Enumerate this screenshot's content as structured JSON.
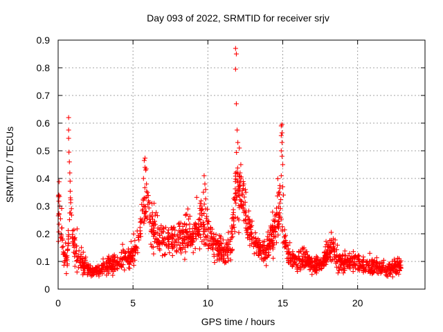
{
  "chart_data": {
    "type": "scatter",
    "title": "Day 093 of 2022, SRMTID for receiver srjv",
    "xlabel": "GPS time / hours",
    "ylabel": "SRMTID / TECUs",
    "xlim": [
      0,
      24.5
    ],
    "ylim": [
      0,
      0.9
    ],
    "xticks": [
      0,
      5,
      10,
      15,
      20
    ],
    "yticks": [
      0,
      0.1,
      0.2,
      0.3,
      0.4,
      0.5,
      0.6,
      0.7,
      0.8,
      0.9
    ],
    "xtick_labels": [
      "0",
      "5",
      "10",
      "15",
      "20"
    ],
    "ytick_labels": [
      "0",
      "0.1",
      "0.2",
      "0.3",
      "0.4",
      "0.5",
      "0.6",
      "0.7",
      "0.8",
      "0.9"
    ],
    "grid": true,
    "marker": "+",
    "color": "#ff0000",
    "series": [
      {
        "name": "srjv",
        "x_range": [
          0,
          22.9
        ],
        "profile": [
          [
            0.0,
            0.3
          ],
          [
            0.2,
            0.22
          ],
          [
            0.4,
            0.11
          ],
          [
            0.6,
            0.1
          ],
          [
            0.8,
            0.3
          ],
          [
            1.0,
            0.18
          ],
          [
            1.3,
            0.11
          ],
          [
            2.0,
            0.07
          ],
          [
            2.5,
            0.06
          ],
          [
            3.0,
            0.08
          ],
          [
            3.5,
            0.09
          ],
          [
            4.0,
            0.1
          ],
          [
            4.6,
            0.11
          ],
          [
            5.0,
            0.12
          ],
          [
            5.4,
            0.18
          ],
          [
            5.8,
            0.33
          ],
          [
            6.2,
            0.23
          ],
          [
            6.6,
            0.19
          ],
          [
            7.0,
            0.18
          ],
          [
            7.6,
            0.17
          ],
          [
            8.0,
            0.18
          ],
          [
            8.5,
            0.2
          ],
          [
            9.0,
            0.17
          ],
          [
            9.6,
            0.26
          ],
          [
            9.9,
            0.22
          ],
          [
            10.4,
            0.16
          ],
          [
            11.0,
            0.13
          ],
          [
            11.5,
            0.15
          ],
          [
            11.9,
            0.36
          ],
          [
            12.3,
            0.33
          ],
          [
            12.7,
            0.22
          ],
          [
            13.2,
            0.15
          ],
          [
            13.8,
            0.14
          ],
          [
            14.4,
            0.19
          ],
          [
            14.8,
            0.3
          ],
          [
            15.1,
            0.16
          ],
          [
            15.6,
            0.11
          ],
          [
            16.0,
            0.1
          ],
          [
            16.5,
            0.11
          ],
          [
            17.0,
            0.09
          ],
          [
            17.5,
            0.08
          ],
          [
            18.0,
            0.13
          ],
          [
            18.3,
            0.16
          ],
          [
            18.7,
            0.1
          ],
          [
            19.5,
            0.1
          ],
          [
            20.0,
            0.09
          ],
          [
            21.0,
            0.08
          ],
          [
            22.0,
            0.07
          ],
          [
            22.9,
            0.09
          ]
        ],
        "spikes": [
          [
            0.05,
            0.34
          ],
          [
            0.1,
            0.3
          ],
          [
            0.7,
            0.62
          ],
          [
            0.7,
            0.575
          ],
          [
            0.7,
            0.545
          ],
          [
            0.72,
            0.495
          ],
          [
            0.75,
            0.46
          ],
          [
            0.78,
            0.42
          ],
          [
            0.8,
            0.39
          ],
          [
            0.82,
            0.33
          ],
          [
            5.75,
            0.465
          ],
          [
            5.8,
            0.44
          ],
          [
            5.85,
            0.43
          ],
          [
            5.7,
            0.4
          ],
          [
            5.9,
            0.38
          ],
          [
            9.75,
            0.41
          ],
          [
            9.8,
            0.38
          ],
          [
            9.85,
            0.36
          ],
          [
            9.7,
            0.35
          ],
          [
            11.85,
            0.87
          ],
          [
            11.9,
            0.85
          ],
          [
            11.85,
            0.795
          ],
          [
            11.9,
            0.67
          ],
          [
            11.95,
            0.575
          ],
          [
            12.0,
            0.53
          ],
          [
            12.1,
            0.51
          ],
          [
            12.2,
            0.45
          ],
          [
            12.15,
            0.42
          ],
          [
            12.0,
            0.42
          ],
          [
            12.4,
            0.38
          ],
          [
            12.5,
            0.36
          ],
          [
            12.3,
            0.34
          ],
          [
            14.95,
            0.595
          ],
          [
            14.9,
            0.59
          ],
          [
            14.95,
            0.565
          ],
          [
            14.9,
            0.555
          ],
          [
            14.95,
            0.53
          ],
          [
            14.9,
            0.5
          ],
          [
            14.95,
            0.48
          ],
          [
            15.0,
            0.45
          ],
          [
            14.9,
            0.41
          ],
          [
            15.0,
            0.37
          ],
          [
            15.05,
            0.34
          ]
        ]
      }
    ]
  }
}
